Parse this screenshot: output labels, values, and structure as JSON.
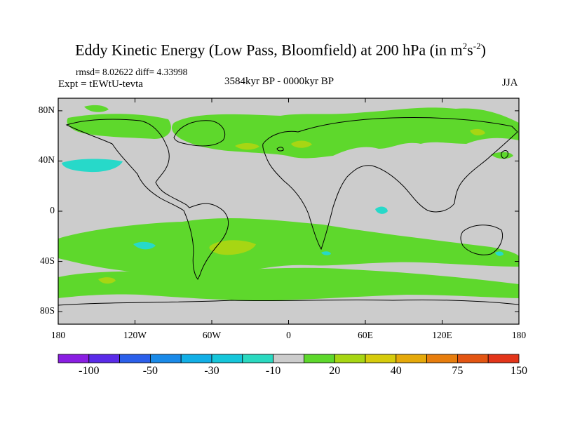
{
  "title": {
    "main": "Eddy Kinetic Energy (Low Pass, Bloomfield) at 200 hPa (in m",
    "sup1": "2",
    "mid": "s",
    "sup2": "-2",
    "close": ")"
  },
  "stats": "rmsd= 8.02622 diff= 4.33998",
  "experiment": "Expt = tEWtU-tevta",
  "period": "3584kyr BP - 0000kyr BP",
  "season": "JJA",
  "map": {
    "projection": "cylindrical-equidistant",
    "lon_range": [
      -180,
      180
    ],
    "lat_range": [
      -90,
      90
    ],
    "y_ticks": [
      {
        "lat": 80,
        "label": "80N"
      },
      {
        "lat": 40,
        "label": "40N"
      },
      {
        "lat": 0,
        "label": "0"
      },
      {
        "lat": -40,
        "label": "40S"
      },
      {
        "lat": -80,
        "label": "80S"
      }
    ],
    "x_ticks": [
      {
        "lon": -180,
        "label": "180"
      },
      {
        "lon": -120,
        "label": "120W"
      },
      {
        "lon": -60,
        "label": "60W"
      },
      {
        "lon": 0,
        "label": "0"
      },
      {
        "lon": 60,
        "label": "60E"
      },
      {
        "lon": 120,
        "label": "120E"
      },
      {
        "lon": 180,
        "label": "180"
      }
    ],
    "colors": {
      "background": "#cccccc",
      "positive_low": "#5ed82c",
      "positive_mid": "#a7d613",
      "negative_low": "#27d9c9"
    }
  },
  "colorbar": {
    "colors": [
      "#8a1ee2",
      "#5a2be8",
      "#2b5fea",
      "#1a8ae8",
      "#12afe6",
      "#15c6da",
      "#2ad9c0",
      "#cccccc",
      "#5ed82c",
      "#a7d613",
      "#d6cb0c",
      "#e5a90a",
      "#e77d0d",
      "#e35512",
      "#e3351a"
    ],
    "labels": [
      {
        "after": 1,
        "text": "-100"
      },
      {
        "after": 3,
        "text": "-50"
      },
      {
        "after": 5,
        "text": "-30"
      },
      {
        "after": 7,
        "text": "-10"
      },
      {
        "after": 9,
        "text": "20"
      },
      {
        "after": 11,
        "text": "40"
      },
      {
        "after": 13,
        "text": "75"
      },
      {
        "after": 15,
        "text": "150"
      }
    ]
  }
}
